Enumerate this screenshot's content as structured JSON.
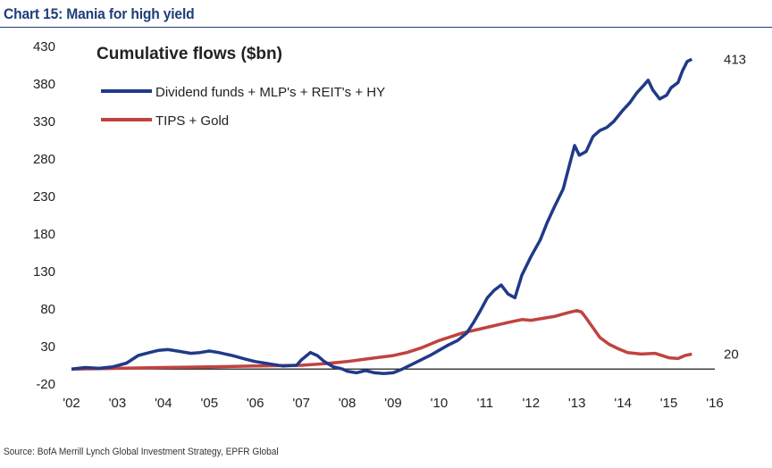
{
  "header": {
    "title": "Chart 15: Mania for high yield"
  },
  "footer": {
    "source": "Source: BofA Merrill Lynch Global Investment Strategy, EPFR Global"
  },
  "colors": {
    "title": "#1f3e7a",
    "series_blue": "#1f3a87",
    "series_red": "#c0433f",
    "zero_line": "#000000"
  },
  "chart_data": {
    "type": "line",
    "title": "Cumulative flows ($bn)",
    "xlabel": "",
    "ylabel": "",
    "xlim": [
      2002,
      2016
    ],
    "ylim": [
      -20,
      430
    ],
    "x_ticks": [
      2002,
      2003,
      2004,
      2005,
      2006,
      2007,
      2008,
      2009,
      2010,
      2011,
      2012,
      2013,
      2014,
      2015,
      2016
    ],
    "x_tick_labels": [
      "'02",
      "'03",
      "'04",
      "'05",
      "'06",
      "'07",
      "'08",
      "'09",
      "'10",
      "'11",
      "'12",
      "'13",
      "'14",
      "'15",
      "'16"
    ],
    "y_ticks": [
      -20,
      30,
      80,
      130,
      180,
      230,
      280,
      330,
      380,
      430
    ],
    "y_tick_labels": [
      "-20",
      "30",
      "80",
      "130",
      "180",
      "230",
      "280",
      "330",
      "380",
      "430"
    ],
    "legend_position": "top-left",
    "series": [
      {
        "name": "Dividend funds + MLP's + REIT's + HY",
        "color": "#1f3a87",
        "end_label": "413",
        "points": [
          [
            2002.0,
            0
          ],
          [
            2002.3,
            2
          ],
          [
            2002.6,
            1
          ],
          [
            2002.9,
            3
          ],
          [
            2003.2,
            8
          ],
          [
            2003.45,
            18
          ],
          [
            2003.7,
            22
          ],
          [
            2003.9,
            25
          ],
          [
            2004.1,
            26
          ],
          [
            2004.3,
            24
          ],
          [
            2004.6,
            21
          ],
          [
            2004.8,
            22
          ],
          [
            2005.0,
            24
          ],
          [
            2005.2,
            22
          ],
          [
            2005.5,
            18
          ],
          [
            2005.8,
            13
          ],
          [
            2006.0,
            10
          ],
          [
            2006.3,
            7
          ],
          [
            2006.6,
            4
          ],
          [
            2006.9,
            5
          ],
          [
            2007.0,
            12
          ],
          [
            2007.2,
            22
          ],
          [
            2007.35,
            18
          ],
          [
            2007.5,
            10
          ],
          [
            2007.7,
            3
          ],
          [
            2007.9,
            0
          ],
          [
            2008.0,
            -3
          ],
          [
            2008.2,
            -5
          ],
          [
            2008.4,
            -2
          ],
          [
            2008.6,
            -5
          ],
          [
            2008.8,
            -6
          ],
          [
            2009.0,
            -5
          ],
          [
            2009.2,
            0
          ],
          [
            2009.4,
            6
          ],
          [
            2009.6,
            12
          ],
          [
            2009.8,
            18
          ],
          [
            2010.0,
            25
          ],
          [
            2010.2,
            32
          ],
          [
            2010.4,
            38
          ],
          [
            2010.6,
            48
          ],
          [
            2010.75,
            62
          ],
          [
            2010.9,
            78
          ],
          [
            2011.05,
            95
          ],
          [
            2011.2,
            105
          ],
          [
            2011.35,
            112
          ],
          [
            2011.5,
            100
          ],
          [
            2011.65,
            95
          ],
          [
            2011.8,
            125
          ],
          [
            2012.0,
            150
          ],
          [
            2012.2,
            172
          ],
          [
            2012.35,
            195
          ],
          [
            2012.5,
            215
          ],
          [
            2012.7,
            240
          ],
          [
            2012.85,
            275
          ],
          [
            2012.95,
            298
          ],
          [
            2013.05,
            285
          ],
          [
            2013.2,
            290
          ],
          [
            2013.35,
            310
          ],
          [
            2013.5,
            318
          ],
          [
            2013.65,
            322
          ],
          [
            2013.8,
            330
          ],
          [
            2014.0,
            345
          ],
          [
            2014.15,
            355
          ],
          [
            2014.3,
            368
          ],
          [
            2014.45,
            378
          ],
          [
            2014.55,
            385
          ],
          [
            2014.65,
            372
          ],
          [
            2014.8,
            360
          ],
          [
            2014.95,
            365
          ],
          [
            2015.05,
            375
          ],
          [
            2015.2,
            382
          ],
          [
            2015.3,
            398
          ],
          [
            2015.4,
            410
          ],
          [
            2015.5,
            413
          ]
        ]
      },
      {
        "name": "TIPS + Gold",
        "color": "#c0433f",
        "end_label": "20",
        "points": [
          [
            2002.0,
            0
          ],
          [
            2003.0,
            1
          ],
          [
            2004.0,
            2
          ],
          [
            2005.0,
            3
          ],
          [
            2006.0,
            4
          ],
          [
            2007.0,
            5
          ],
          [
            2007.5,
            7
          ],
          [
            2008.0,
            10
          ],
          [
            2008.5,
            14
          ],
          [
            2009.0,
            18
          ],
          [
            2009.3,
            22
          ],
          [
            2009.6,
            28
          ],
          [
            2010.0,
            38
          ],
          [
            2010.5,
            48
          ],
          [
            2011.0,
            55
          ],
          [
            2011.5,
            62
          ],
          [
            2011.8,
            66
          ],
          [
            2012.0,
            65
          ],
          [
            2012.5,
            70
          ],
          [
            2012.8,
            75
          ],
          [
            2013.0,
            78
          ],
          [
            2013.1,
            76
          ],
          [
            2013.2,
            68
          ],
          [
            2013.35,
            55
          ],
          [
            2013.5,
            42
          ],
          [
            2013.7,
            33
          ],
          [
            2013.9,
            27
          ],
          [
            2014.1,
            22
          ],
          [
            2014.4,
            20
          ],
          [
            2014.7,
            21
          ],
          [
            2015.0,
            15
          ],
          [
            2015.2,
            14
          ],
          [
            2015.35,
            18
          ],
          [
            2015.5,
            20
          ]
        ]
      }
    ]
  }
}
